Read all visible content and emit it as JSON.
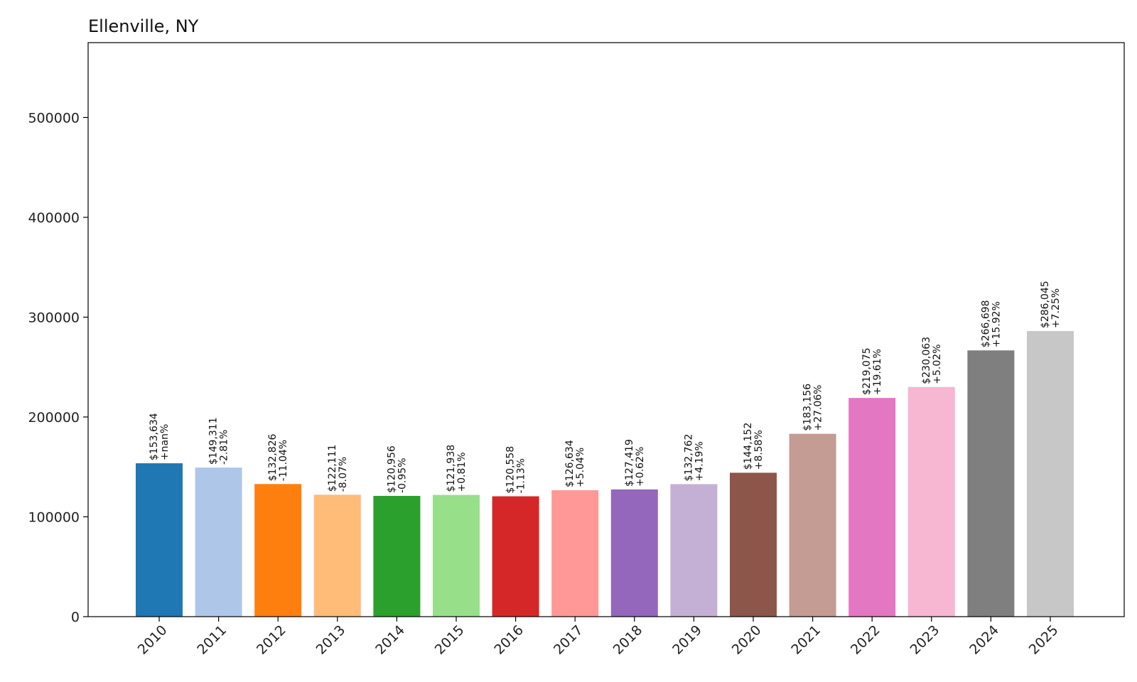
{
  "chart_data": {
    "type": "bar",
    "title": "Ellenville, NY",
    "xlabel": "",
    "ylabel": "",
    "ylim": [
      0,
      575000
    ],
    "yticks": [
      0,
      100000,
      200000,
      300000,
      400000,
      500000
    ],
    "ytick_labels": [
      "0",
      "100000",
      "200000",
      "300000",
      "400000",
      "500000"
    ],
    "grid": false,
    "categories": [
      "2010",
      "2011",
      "2012",
      "2013",
      "2014",
      "2015",
      "2016",
      "2017",
      "2018",
      "2019",
      "2020",
      "2021",
      "2022",
      "2023",
      "2024",
      "2025"
    ],
    "values": [
      153634,
      149311,
      132826,
      122111,
      120956,
      121938,
      120558,
      126634,
      127419,
      132762,
      144152,
      183156,
      219075,
      230063,
      266698,
      286045
    ],
    "value_labels": [
      "$153,634",
      "$149,311",
      "$132,826",
      "$122,111",
      "$120,956",
      "$121,938",
      "$120,558",
      "$126,634",
      "$127,419",
      "$132,762",
      "$144,152",
      "$183,156",
      "$219,075",
      "$230,063",
      "$266,698",
      "$286,045"
    ],
    "pct_labels": [
      "+nan%",
      "-2.81%",
      "-11.04%",
      "-8.07%",
      "-0.95%",
      "+0.81%",
      "-1.13%",
      "+5.04%",
      "+0.62%",
      "+4.19%",
      "+8.58%",
      "+27.06%",
      "+19.61%",
      "+5.02%",
      "+15.92%",
      "+7.25%"
    ],
    "colors": [
      "#1f77b4",
      "#aec7e8",
      "#ff7f0e",
      "#ffbb78",
      "#2ca02c",
      "#98df8a",
      "#d62728",
      "#ff9896",
      "#9467bd",
      "#c5b0d5",
      "#8c564b",
      "#c49c94",
      "#e377c2",
      "#f7b6d2",
      "#7f7f7f",
      "#c7c7c7"
    ]
  }
}
